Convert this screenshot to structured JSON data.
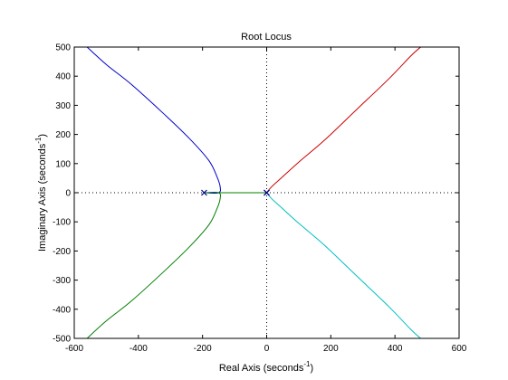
{
  "chart_data": {
    "type": "line",
    "title": "Root Locus",
    "xlabel": {
      "text": "Real Axis (seconds",
      "sup": "-1",
      "close": ")"
    },
    "ylabel": {
      "text": "Imaginary Axis (seconds",
      "sup": "-1",
      "close": ")"
    },
    "xlim": [
      -600,
      600
    ],
    "ylim": [
      -500,
      500
    ],
    "xticks": [
      -600,
      -400,
      -200,
      0,
      200,
      400,
      600
    ],
    "yticks": [
      -500,
      -400,
      -300,
      -200,
      -100,
      0,
      100,
      200,
      300,
      400,
      500
    ],
    "grid": false,
    "reference_lines": {
      "x": 0,
      "y": 0,
      "style": "dotted"
    },
    "series": [
      {
        "color": "#0000cc",
        "points": [
          [
            -195,
            0
          ],
          [
            -150,
            0
          ],
          [
            -145,
            20
          ],
          [
            -155,
            55
          ],
          [
            -180,
            110
          ],
          [
            -240,
            185
          ],
          [
            -320,
            270
          ],
          [
            -420,
            370
          ],
          [
            -500,
            440
          ],
          [
            -560,
            500
          ]
        ]
      },
      {
        "color": "#007f00",
        "points": [
          [
            -195,
            0
          ],
          [
            -150,
            0
          ],
          [
            -145,
            -20
          ],
          [
            -155,
            -55
          ],
          [
            -180,
            -110
          ],
          [
            -240,
            -185
          ],
          [
            -320,
            -270
          ],
          [
            -420,
            -370
          ],
          [
            -500,
            -440
          ],
          [
            -560,
            -500
          ]
        ]
      },
      {
        "color": "#007f00",
        "points": [
          [
            -150,
            0
          ],
          [
            -80,
            0
          ],
          [
            0,
            0
          ]
        ]
      },
      {
        "color": "#cc0000",
        "points": [
          [
            0,
            0
          ],
          [
            15,
            20
          ],
          [
            45,
            50
          ],
          [
            100,
            105
          ],
          [
            180,
            180
          ],
          [
            280,
            285
          ],
          [
            380,
            390
          ],
          [
            450,
            470
          ],
          [
            480,
            500
          ]
        ]
      },
      {
        "color": "#00bfbf",
        "points": [
          [
            0,
            0
          ],
          [
            15,
            -20
          ],
          [
            45,
            -50
          ],
          [
            100,
            -105
          ],
          [
            180,
            -180
          ],
          [
            280,
            -285
          ],
          [
            380,
            -390
          ],
          [
            450,
            -470
          ],
          [
            480,
            -500
          ]
        ]
      }
    ],
    "poles": [
      [
        -195,
        0
      ],
      [
        0,
        0
      ],
      [
        0,
        0
      ]
    ],
    "pole_color": "#00008b"
  }
}
